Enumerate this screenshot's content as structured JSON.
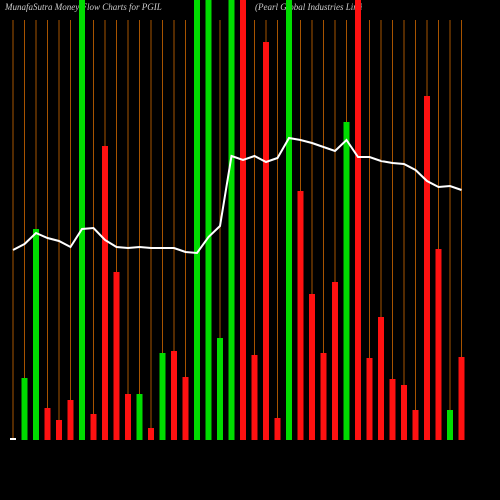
{
  "chart_data": {
    "type": "bar",
    "title": "MunafaSutra  Money Flow  Charts for PGIL",
    "subtitle": "(Pearl Global Industries Limi",
    "ylim": [
      0,
      440
    ],
    "values": [
      2,
      62,
      211,
      32,
      20,
      40,
      440,
      26,
      294,
      168,
      46,
      46,
      12,
      87,
      89,
      63,
      440,
      440,
      102,
      440,
      440,
      85,
      398,
      22,
      440,
      249,
      146,
      87,
      158,
      318,
      440,
      82,
      123,
      61,
      55,
      30,
      344,
      191,
      30,
      83
    ],
    "colors": [
      "#ffffff",
      "#00dd00",
      "#00dd00",
      "#ff1111",
      "#ff1111",
      "#ff1111",
      "#00dd00",
      "#ff1111",
      "#ff1111",
      "#ff1111",
      "#ff1111",
      "#00dd00",
      "#ff1111",
      "#00dd00",
      "#ff1111",
      "#ff1111",
      "#00dd00",
      "#00dd00",
      "#00dd00",
      "#00dd00",
      "#ff1111",
      "#ff1111",
      "#ff1111",
      "#ff1111",
      "#00dd00",
      "#ff1111",
      "#ff1111",
      "#ff1111",
      "#ff1111",
      "#00dd00",
      "#ff1111",
      "#ff1111",
      "#ff1111",
      "#ff1111",
      "#ff1111",
      "#ff1111",
      "#ff1111",
      "#ff1111",
      "#00dd00",
      "#ff1111"
    ],
    "line": {
      "color": "#ffffff",
      "values": [
        190,
        196,
        207,
        202,
        199,
        193,
        211,
        212,
        200,
        193,
        192,
        193,
        192,
        192,
        192,
        188,
        187,
        203,
        214,
        284,
        280,
        284,
        278,
        282,
        302,
        300,
        297,
        293,
        289,
        300,
        283,
        283,
        279,
        277,
        276,
        270,
        259,
        253,
        254,
        250
      ]
    },
    "grid_color": "#a65300"
  }
}
